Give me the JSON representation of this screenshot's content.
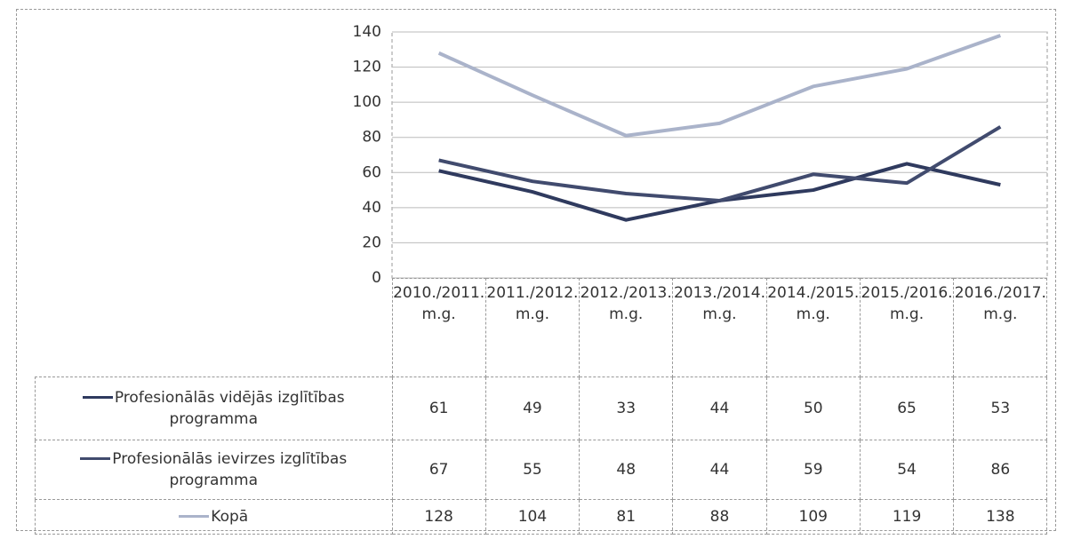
{
  "chart_data": {
    "type": "line",
    "categories": [
      "2010./2011.m.g.",
      "2011./2012.m.g.",
      "2012./2013.m.g.",
      "2013./2014.m.g.",
      "2014./2015.m.g.",
      "2015./2016.m.g.",
      "2016./2017.m.g."
    ],
    "series": [
      {
        "name": "Profesionālās vidējās izglītības programma",
        "color": "#2f3a5e",
        "values": [
          61,
          49,
          33,
          44,
          50,
          65,
          53
        ]
      },
      {
        "name": "Profesionālās ievirzes izglītības programma",
        "color": "#414b6e",
        "values": [
          67,
          55,
          48,
          44,
          59,
          54,
          86
        ]
      },
      {
        "name": "Kopā",
        "color": "#aab3ca",
        "values": [
          128,
          104,
          81,
          88,
          109,
          119,
          138
        ]
      }
    ],
    "ylim": [
      0,
      140
    ],
    "yticks": [
      0,
      20,
      40,
      60,
      80,
      100,
      120,
      140
    ],
    "grid": true
  }
}
